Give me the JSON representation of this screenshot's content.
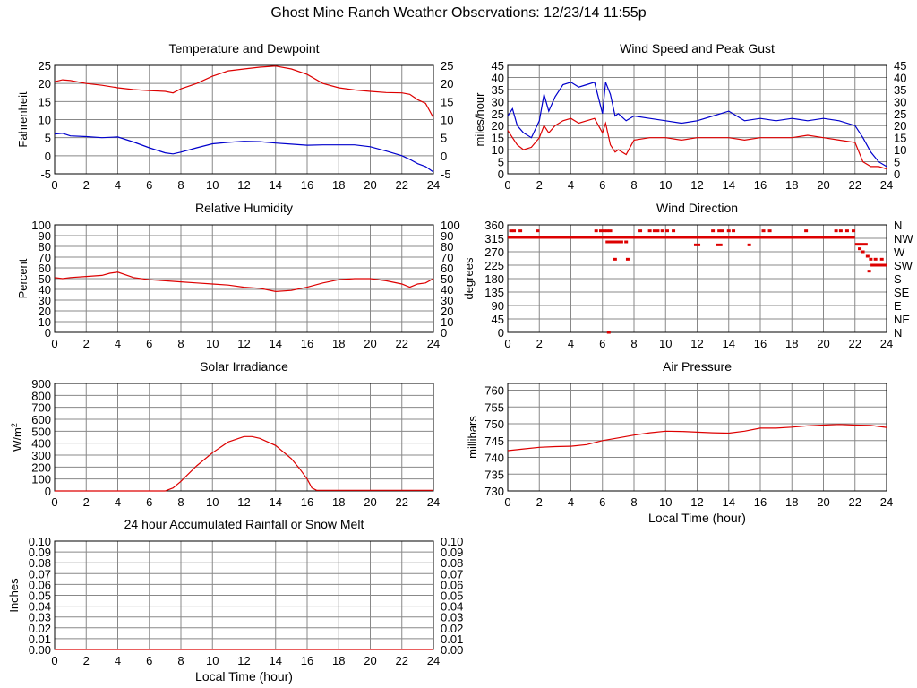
{
  "page": {
    "title": "Ghost Mine Ranch Weather Observations: 12/23/14 11:55p"
  },
  "chart_data": [
    {
      "id": "temp",
      "type": "line",
      "title": "Temperature and Dewpoint",
      "ylabel": "Fahrenheit",
      "xlabel": "",
      "xlim": [
        0,
        24
      ],
      "ylim": [
        -5,
        25
      ],
      "xticks": [
        0,
        2,
        4,
        6,
        8,
        10,
        12,
        14,
        16,
        18,
        20,
        22,
        24
      ],
      "yticks": [
        -5,
        0,
        5,
        10,
        15,
        20,
        25
      ],
      "right_ticks": [
        "-5",
        "0",
        "5",
        "10",
        "15",
        "20",
        "25"
      ],
      "grid": true,
      "series": [
        {
          "color": "#dd0000",
          "x": [
            0,
            0.5,
            1,
            2,
            3,
            4,
            5,
            6,
            7,
            7.5,
            8,
            9,
            10,
            11,
            12,
            13,
            14,
            15,
            16,
            17,
            18,
            19,
            20,
            21,
            22,
            22.5,
            23,
            23.5,
            24
          ],
          "y": [
            20.5,
            21,
            20.8,
            20,
            19.5,
            18.8,
            18.3,
            18,
            17.8,
            17.4,
            18.5,
            20,
            22,
            23.5,
            24,
            24.5,
            24.8,
            24,
            22.5,
            20,
            18.8,
            18.2,
            17.8,
            17.5,
            17.4,
            17,
            15.5,
            14.5,
            10.5
          ]
        },
        {
          "color": "#0000cc",
          "x": [
            0,
            0.5,
            1,
            2,
            3,
            4,
            5,
            6,
            7,
            7.5,
            8,
            9,
            10,
            11,
            12,
            13,
            14,
            15,
            16,
            17,
            18,
            19,
            20,
            21,
            22,
            22.5,
            23,
            23.5,
            24
          ],
          "y": [
            6,
            6.2,
            5.5,
            5.3,
            5,
            5.2,
            3.8,
            2.2,
            0.8,
            0.5,
            1,
            2.2,
            3.3,
            3.7,
            4,
            3.9,
            3.5,
            3.2,
            2.9,
            3,
            3,
            3,
            2.5,
            1.3,
            0,
            -1,
            -2.2,
            -3,
            -4.5
          ]
        }
      ]
    },
    {
      "id": "wind",
      "type": "line",
      "title": "Wind Speed and Peak Gust",
      "ylabel": "miles/hour",
      "xlabel": "",
      "xlim": [
        0,
        24
      ],
      "ylim": [
        0,
        45
      ],
      "xticks": [
        0,
        2,
        4,
        6,
        8,
        10,
        12,
        14,
        16,
        18,
        20,
        22,
        24
      ],
      "yticks": [
        0,
        5,
        10,
        15,
        20,
        25,
        30,
        35,
        40,
        45
      ],
      "right_ticks": [
        "0",
        "5",
        "10",
        "15",
        "20",
        "25",
        "30",
        "35",
        "40",
        "45"
      ],
      "grid": true,
      "series": [
        {
          "color": "#0000cc",
          "x": [
            0,
            0.3,
            0.6,
            1,
            1.5,
            2,
            2.3,
            2.6,
            3,
            3.5,
            4,
            4.5,
            5,
            5.5,
            6,
            6.2,
            6.5,
            6.8,
            7,
            7.5,
            8,
            9,
            10,
            11,
            12,
            13,
            14,
            15,
            16,
            17,
            18,
            19,
            20,
            21,
            22,
            22.5,
            23,
            23.5,
            24
          ],
          "y": [
            24,
            27,
            20,
            17,
            15,
            22,
            33,
            26,
            32,
            37,
            38,
            36,
            37,
            38,
            25,
            38,
            33,
            24,
            25,
            22,
            24,
            23,
            22,
            21,
            22,
            24,
            26,
            22,
            23,
            22,
            23,
            22,
            23,
            22,
            20,
            15,
            9,
            5,
            3
          ]
        },
        {
          "color": "#dd0000",
          "x": [
            0,
            0.3,
            0.6,
            1,
            1.5,
            2,
            2.3,
            2.6,
            3,
            3.5,
            4,
            4.5,
            5,
            5.5,
            6,
            6.2,
            6.5,
            6.8,
            7,
            7.5,
            8,
            9,
            10,
            11,
            12,
            13,
            14,
            15,
            16,
            17,
            18,
            19,
            20,
            21,
            22,
            22.5,
            23,
            23.5,
            24
          ],
          "y": [
            18,
            15,
            12,
            10,
            11,
            15,
            20,
            17,
            20,
            22,
            23,
            21,
            22,
            23,
            17,
            21,
            12,
            9,
            10,
            8,
            14,
            15,
            15,
            14,
            15,
            15,
            15,
            14,
            15,
            15,
            15,
            16,
            15,
            14,
            13,
            5,
            3,
            3,
            2
          ]
        }
      ]
    },
    {
      "id": "humidity",
      "type": "line",
      "title": "Relative Humidity",
      "ylabel": "Percent",
      "xlabel": "",
      "xlim": [
        0,
        24
      ],
      "ylim": [
        0,
        100
      ],
      "xticks": [
        0,
        2,
        4,
        6,
        8,
        10,
        12,
        14,
        16,
        18,
        20,
        22,
        24
      ],
      "yticks": [
        0,
        10,
        20,
        30,
        40,
        50,
        60,
        70,
        80,
        90,
        100
      ],
      "right_ticks": [
        "0",
        "10",
        "20",
        "30",
        "40",
        "50",
        "60",
        "70",
        "80",
        "90",
        "100"
      ],
      "grid": true,
      "series": [
        {
          "color": "#dd0000",
          "x": [
            0,
            0.5,
            1,
            2,
            3,
            3.5,
            4,
            5,
            6,
            7,
            8,
            9,
            10,
            11,
            12,
            13,
            14,
            15,
            16,
            17,
            18,
            19,
            20,
            21,
            22,
            22.5,
            23,
            23.5,
            24
          ],
          "y": [
            51,
            50,
            51,
            52,
            53,
            55,
            56,
            51,
            49,
            48,
            47,
            46,
            45,
            44,
            42,
            41,
            38,
            39,
            42,
            46,
            49,
            50,
            50,
            48,
            45,
            42,
            45,
            46,
            50
          ]
        }
      ]
    },
    {
      "id": "winddir",
      "type": "scatter",
      "title": "Wind Direction",
      "ylabel": "degrees",
      "xlabel": "",
      "xlim": [
        0,
        24
      ],
      "ylim": [
        0,
        360
      ],
      "xticks": [
        0,
        2,
        4,
        6,
        8,
        10,
        12,
        14,
        16,
        18,
        20,
        22,
        24
      ],
      "yticks": [
        0,
        45,
        90,
        135,
        180,
        225,
        270,
        315,
        360
      ],
      "right_ticks": [
        "N",
        "NE",
        "E",
        "SE",
        "S",
        "SW",
        "W",
        "NW",
        "N"
      ],
      "grid": true,
      "continuous_segments": [
        [
          0,
          22,
          318
        ],
        [
          6.2,
          7.1,
          303
        ],
        [
          11.8,
          12.2,
          293
        ],
        [
          13.2,
          13.6,
          293
        ],
        [
          22,
          22.8,
          295
        ],
        [
          23,
          24,
          225
        ]
      ],
      "series": [
        {
          "color": "#dd0000",
          "x": [
            0.2,
            0.4,
            0.8,
            1.9,
            5.6,
            5.9,
            6.1,
            6.3,
            6.5,
            6.6,
            6.8,
            7.2,
            7.5,
            8.4,
            9.0,
            9.3,
            9.5,
            9.8,
            10.1,
            10.5,
            13.0,
            13.4,
            13.6,
            14.0,
            14.3,
            15.3,
            16.2,
            16.6,
            18.9,
            20.8,
            21.1,
            21.5,
            21.9,
            22.3,
            22.5,
            22.8,
            23.0,
            22.9,
            23.3,
            23.7,
            23.1,
            6.4,
            6.8,
            7.6
          ],
          "y": [
            340,
            340,
            340,
            340,
            340,
            340,
            340,
            340,
            340,
            303,
            303,
            303,
            303,
            340,
            340,
            340,
            340,
            340,
            340,
            340,
            340,
            340,
            340,
            340,
            340,
            293,
            340,
            340,
            340,
            340,
            340,
            340,
            340,
            280,
            270,
            255,
            245,
            205,
            245,
            245,
            225,
            0,
            245,
            245
          ]
        }
      ]
    },
    {
      "id": "solar",
      "type": "line",
      "title": "Solar Irradiance",
      "ylabel": "W/m",
      "ylabel_sup": "2",
      "xlabel": "",
      "xlim": [
        0,
        24
      ],
      "ylim": [
        0,
        900
      ],
      "xticks": [
        0,
        2,
        4,
        6,
        8,
        10,
        12,
        14,
        16,
        18,
        20,
        22,
        24
      ],
      "yticks": [
        0,
        100,
        200,
        300,
        400,
        500,
        600,
        700,
        800,
        900
      ],
      "right_ticks": [],
      "grid": true,
      "series": [
        {
          "color": "#dd0000",
          "x": [
            0,
            7,
            7.5,
            8,
            9,
            10,
            11,
            12,
            12.5,
            13,
            14,
            15,
            15.5,
            16,
            16.3,
            16.6,
            24
          ],
          "y": [
            0,
            0,
            25,
            80,
            210,
            320,
            410,
            455,
            455,
            440,
            380,
            270,
            190,
            100,
            25,
            5,
            5
          ]
        }
      ]
    },
    {
      "id": "pressure",
      "type": "line",
      "title": "Air Pressure",
      "ylabel": "millibars",
      "xlabel": "Local Time (hour)",
      "xlim": [
        0,
        24
      ],
      "ylim": [
        730,
        762
      ],
      "xticks": [
        0,
        2,
        4,
        6,
        8,
        10,
        12,
        14,
        16,
        18,
        20,
        22,
        24
      ],
      "yticks": [
        730,
        735,
        740,
        745,
        750,
        755,
        760
      ],
      "right_ticks": [],
      "grid": true,
      "series": [
        {
          "color": "#dd0000",
          "x": [
            0,
            1,
            2,
            3,
            4,
            5,
            6,
            7,
            8,
            9,
            10,
            11,
            12,
            13,
            14,
            15,
            16,
            17,
            18,
            19,
            20,
            21,
            22,
            23,
            24
          ],
          "y": [
            742,
            742.5,
            743,
            743.2,
            743.3,
            743.8,
            745,
            745.8,
            746.6,
            747.3,
            747.8,
            747.7,
            747.5,
            747.3,
            747.2,
            747.8,
            748.7,
            748.7,
            749,
            749.4,
            749.6,
            749.8,
            749.6,
            749.5,
            748.9
          ]
        }
      ]
    },
    {
      "id": "rain",
      "type": "line",
      "title": "24 hour Accumulated Rainfall or Snow Melt",
      "ylabel": "Inches",
      "xlabel": "Local Time (hour)",
      "xlim": [
        0,
        24
      ],
      "ylim": [
        0,
        0.1
      ],
      "xticks": [
        0,
        2,
        4,
        6,
        8,
        10,
        12,
        14,
        16,
        18,
        20,
        22,
        24
      ],
      "yticks": [
        0,
        0.01,
        0.02,
        0.03,
        0.04,
        0.05,
        0.06,
        0.07,
        0.08,
        0.09,
        0.1
      ],
      "ytick_labels": [
        "0.00",
        "0.01",
        "0.02",
        "0.03",
        "0.04",
        "0.05",
        "0.06",
        "0.07",
        "0.08",
        "0.09",
        "0.10"
      ],
      "right_ticks": [
        "0.00",
        "0.01",
        "0.02",
        "0.03",
        "0.04",
        "0.05",
        "0.06",
        "0.07",
        "0.08",
        "0.09",
        "0.10"
      ],
      "grid": true,
      "series": [
        {
          "color": "#dd0000",
          "x": [
            0,
            24
          ],
          "y": [
            0,
            0
          ]
        }
      ]
    }
  ]
}
